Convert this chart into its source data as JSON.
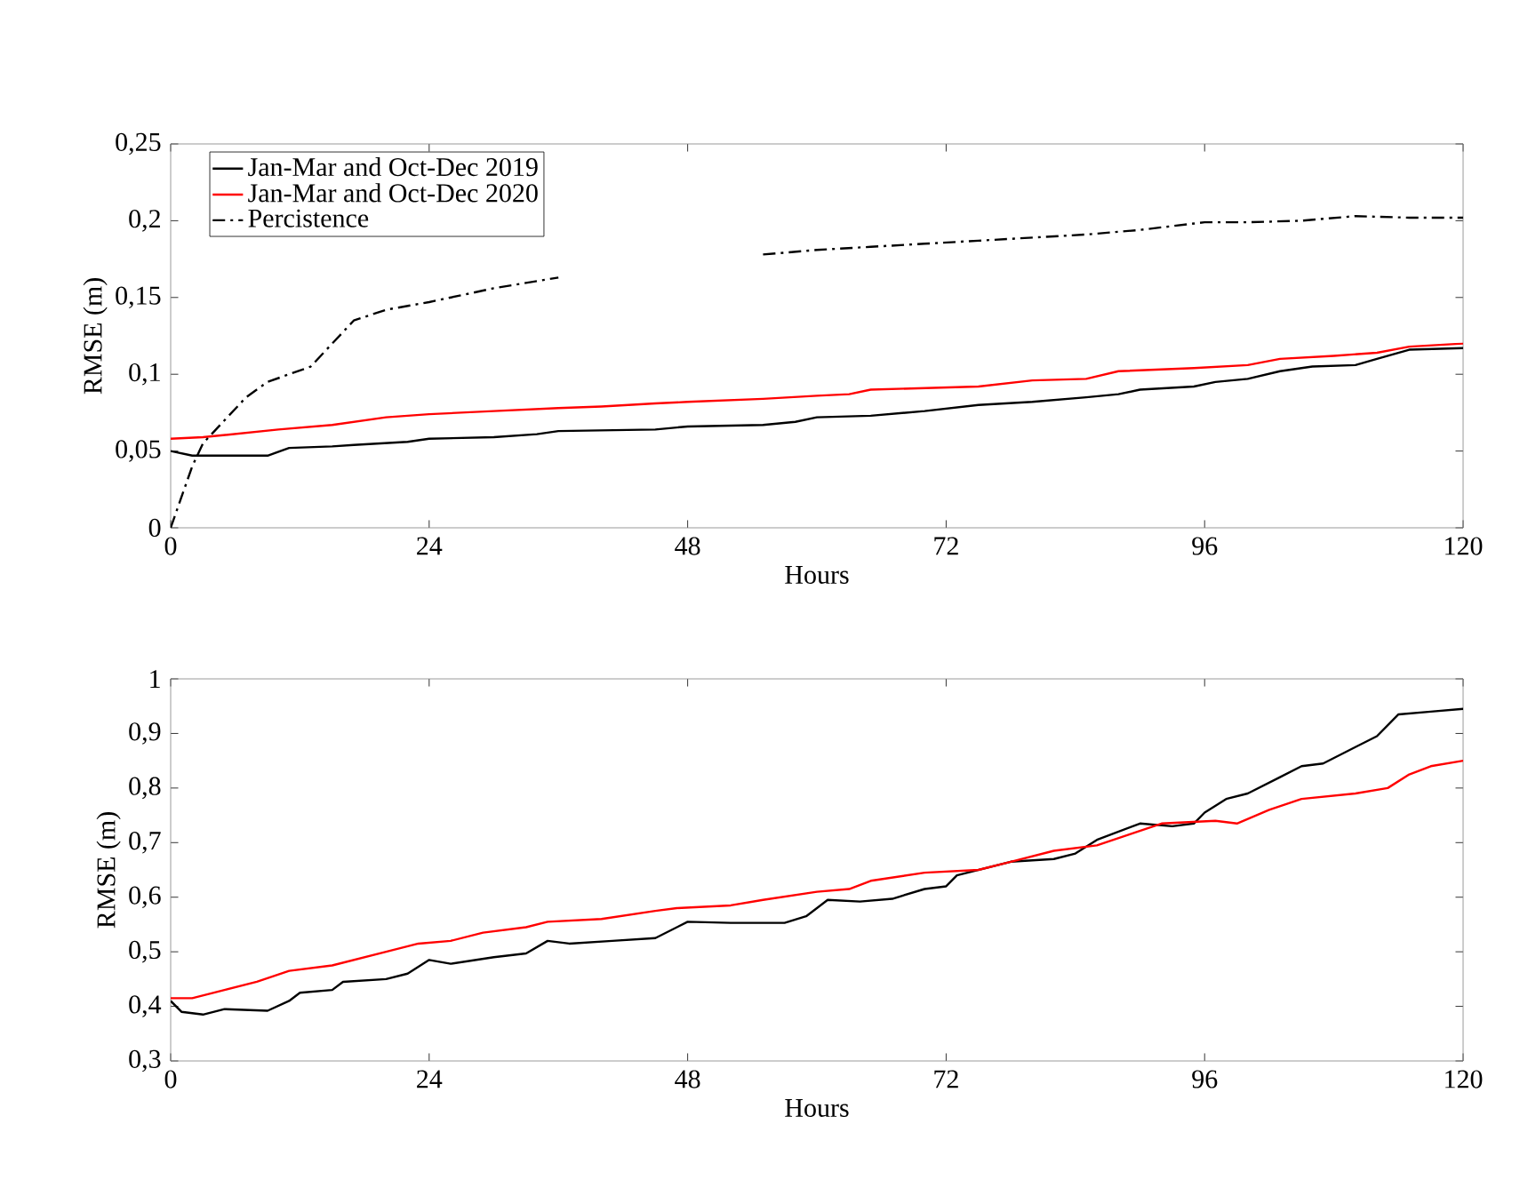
{
  "chart_data": [
    {
      "type": "line",
      "xlabel": "Hours",
      "ylabel": "RMSE (m)",
      "xlim": [
        0,
        120
      ],
      "ylim": [
        0,
        0.25
      ],
      "xticks": [
        0,
        24,
        48,
        72,
        96,
        120
      ],
      "yticks": [
        0,
        {
          "value": 0.05,
          "label": "0,05"
        },
        {
          "value": 0.1,
          "label": "0,1"
        },
        {
          "value": 0.15,
          "label": "0,15"
        },
        {
          "value": 0.2,
          "label": "0,2"
        },
        {
          "value": 0.25,
          "label": "0,25"
        }
      ],
      "legend": "top left",
      "series": [
        {
          "name": "Jan-Mar and Oct-Dec 2019",
          "color": "#000000",
          "x": [
            0,
            2,
            9,
            11,
            15,
            17,
            22,
            24,
            30,
            34,
            36,
            45,
            48,
            55,
            58,
            60,
            65,
            70,
            75,
            80,
            85,
            88,
            90,
            95,
            97,
            100,
            103,
            106,
            110,
            112,
            115,
            120
          ],
          "values": [
            0.05,
            0.047,
            0.047,
            0.052,
            0.053,
            0.054,
            0.056,
            0.058,
            0.059,
            0.061,
            0.063,
            0.064,
            0.066,
            0.067,
            0.069,
            0.072,
            0.073,
            0.076,
            0.08,
            0.082,
            0.085,
            0.087,
            0.09,
            0.092,
            0.095,
            0.097,
            0.102,
            0.105,
            0.106,
            0.11,
            0.116,
            0.117
          ]
        },
        {
          "name": "Jan-Mar and Oct-Dec 2020",
          "color": "#ff0000",
          "x": [
            0,
            3,
            10,
            15,
            20,
            24,
            30,
            36,
            40,
            45,
            48,
            55,
            60,
            63,
            65,
            70,
            75,
            80,
            85,
            88,
            95,
            100,
            103,
            108,
            112,
            115,
            120
          ],
          "values": [
            0.058,
            0.059,
            0.064,
            0.067,
            0.072,
            0.074,
            0.076,
            0.078,
            0.079,
            0.081,
            0.082,
            0.084,
            0.086,
            0.087,
            0.09,
            0.091,
            0.092,
            0.096,
            0.097,
            0.102,
            0.104,
            0.106,
            0.11,
            0.112,
            0.114,
            0.118,
            0.12
          ]
        },
        {
          "name": "Percistence",
          "color": "#000000",
          "line_style": "dashdot",
          "x": [
            0,
            1,
            2,
            3,
            5,
            7,
            9,
            11,
            13,
            15,
            17,
            20,
            24,
            30,
            36,
            45,
            55,
            60,
            65,
            70,
            75,
            80,
            85,
            90,
            96,
            100,
            105,
            110,
            115,
            120
          ],
          "values": [
            0.0,
            0.02,
            0.04,
            0.055,
            0.07,
            0.085,
            0.095,
            0.1,
            0.105,
            0.12,
            0.135,
            0.142,
            0.147,
            0.156,
            0.163,
            null,
            0.178,
            0.181,
            0.183,
            0.185,
            0.187,
            0.189,
            0.191,
            0.194,
            0.199,
            0.199,
            0.2,
            0.203,
            0.202,
            0.202
          ]
        }
      ]
    },
    {
      "type": "line",
      "xlabel": "Hours",
      "ylabel": "RMSE (m)",
      "xlim": [
        0,
        120
      ],
      "ylim": [
        0.3,
        1
      ],
      "xticks": [
        0,
        24,
        48,
        72,
        96,
        120
      ],
      "yticks": [
        {
          "value": 0.3,
          "label": "0,3"
        },
        {
          "value": 0.4,
          "label": "0,4"
        },
        {
          "value": 0.5,
          "label": "0,5"
        },
        {
          "value": 0.6,
          "label": "0,6"
        },
        {
          "value": 0.7,
          "label": "0,7"
        },
        {
          "value": 0.8,
          "label": "0,8"
        },
        {
          "value": 0.9,
          "label": "0,9"
        },
        1
      ],
      "series": [
        {
          "color": "#000000",
          "x": [
            0,
            1,
            3,
            5,
            9,
            11,
            12,
            15,
            16,
            20,
            22,
            24,
            26,
            30,
            33,
            35,
            37,
            41,
            45,
            48,
            52,
            57,
            59,
            61,
            64,
            67,
            70,
            72,
            73,
            78,
            82,
            84,
            86,
            90,
            93,
            95,
            96,
            98,
            100,
            103,
            105,
            107,
            110,
            112,
            114,
            117,
            120
          ],
          "values": [
            0.41,
            0.39,
            0.385,
            0.395,
            0.392,
            0.41,
            0.425,
            0.43,
            0.445,
            0.45,
            0.46,
            0.485,
            0.478,
            0.49,
            0.497,
            0.52,
            0.515,
            0.52,
            0.525,
            0.555,
            0.553,
            0.553,
            0.565,
            0.595,
            0.592,
            0.597,
            0.615,
            0.62,
            0.64,
            0.665,
            0.67,
            0.68,
            0.705,
            0.735,
            0.73,
            0.735,
            0.755,
            0.78,
            0.79,
            0.82,
            0.84,
            0.845,
            0.875,
            0.895,
            0.935,
            0.94,
            0.945
          ]
        },
        {
          "color": "#ff0000",
          "x": [
            0,
            2,
            5,
            8,
            11,
            15,
            20,
            23,
            26,
            29,
            33,
            35,
            40,
            45,
            47,
            52,
            55,
            60,
            63,
            65,
            70,
            75,
            78,
            82,
            86,
            89,
            92,
            97,
            99,
            102,
            105,
            110,
            113,
            115,
            117,
            120
          ],
          "values": [
            0.415,
            0.415,
            0.43,
            0.445,
            0.465,
            0.475,
            0.5,
            0.515,
            0.52,
            0.535,
            0.545,
            0.555,
            0.56,
            0.575,
            0.58,
            0.585,
            0.595,
            0.61,
            0.615,
            0.63,
            0.645,
            0.65,
            0.665,
            0.685,
            0.695,
            0.715,
            0.735,
            0.74,
            0.735,
            0.76,
            0.78,
            0.79,
            0.8,
            0.825,
            0.84,
            0.85
          ]
        }
      ]
    }
  ]
}
